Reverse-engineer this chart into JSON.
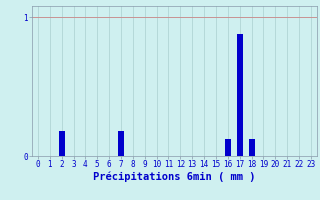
{
  "hours": [
    0,
    1,
    2,
    3,
    4,
    5,
    6,
    7,
    8,
    9,
    10,
    11,
    12,
    13,
    14,
    15,
    16,
    17,
    18,
    19,
    20,
    21,
    22,
    23
  ],
  "values": [
    0,
    0,
    0.18,
    0,
    0,
    0,
    0,
    0.18,
    0,
    0,
    0,
    0,
    0,
    0,
    0,
    0,
    0.12,
    0.88,
    0.12,
    0,
    0,
    0,
    0,
    0
  ],
  "bar_color": "#0000cc",
  "bg_color": "#cff0f0",
  "grid_color": "#aacfcf",
  "axis_color": "#8899aa",
  "text_color": "#0000cc",
  "xlabel": "Précipitations 6min ( mm )",
  "ylim": [
    0,
    1.08
  ],
  "xlim": [
    -0.5,
    23.5
  ],
  "yticks": [
    0,
    1
  ],
  "ytick_labels": [
    "0",
    "1"
  ],
  "xticks": [
    0,
    1,
    2,
    3,
    4,
    5,
    6,
    7,
    8,
    9,
    10,
    11,
    12,
    13,
    14,
    15,
    16,
    17,
    18,
    19,
    20,
    21,
    22,
    23
  ],
  "tick_fontsize": 5.5,
  "xlabel_fontsize": 7.5,
  "bar_width": 0.5
}
